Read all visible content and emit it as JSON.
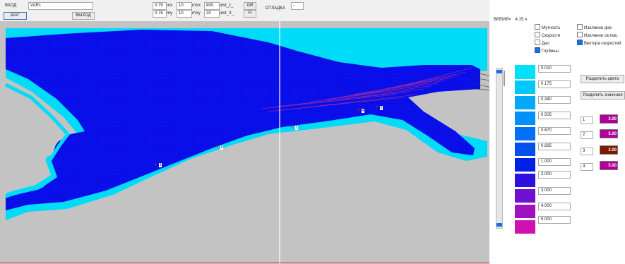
{
  "toolbar": {
    "input_label": "ВХОД",
    "file_name": "VAR1",
    "step_label": "ШАГ",
    "exit_label": "ВЫХОД",
    "mx_value": "0.75",
    "mx_label": "mx",
    "mvx_value": "10",
    "mvx_label": "mVx",
    "val_800": "800",
    "otst_z_label": "otst_z_",
    "gr_label": "GR",
    "debug_label": "ОТЛАДКА",
    "debug_value": "-",
    "my_value": "0.75",
    "my_label": "my",
    "mvy_value": "10",
    "mvy_label": "mVy",
    "val_20": "20",
    "otst_x_label": "otst_X_",
    "fi_label": "FI"
  },
  "time": {
    "label": "ВРЕМЯ=",
    "value": "4.15 ч"
  },
  "layers": [
    {
      "label": "Мутность",
      "checked": false
    },
    {
      "label": "Изолинии дна",
      "checked": false
    },
    {
      "label": "Скорости",
      "checked": false
    },
    {
      "label": "Изолинии св.пов.",
      "checked": false
    },
    {
      "label": "Дно",
      "checked": false
    },
    {
      "label": "Вектора скоростей",
      "checked": true
    },
    {
      "label": "Глубины",
      "checked": true
    }
  ],
  "legend": {
    "colors": [
      "#00e0f8",
      "#00c8f8",
      "#00aaf8",
      "#0090f8",
      "#0070f8",
      "#0050f0",
      "#0020e8",
      "#3010e0",
      "#7010d0",
      "#a010c0",
      "#d010b0",
      "#f00090"
    ],
    "values": [
      "0.010",
      "0.175",
      "0.340",
      "0.505",
      "0.670",
      "0.835",
      "1.000",
      "2.000",
      "3.000",
      "4.000",
      "5.000"
    ]
  },
  "buttons": {
    "split_colors": "Разделить цвета",
    "split_values": "Разделить значения"
  },
  "color_slots": [
    {
      "n": "1",
      "value": "3.00",
      "color": "#b0009a"
    },
    {
      "n": "2",
      "value": "5.00",
      "color": "#b0009a"
    },
    {
      "n": "3",
      "value": "3.00",
      "color": "#7a1a00"
    },
    {
      "n": "4",
      "value": "5.00",
      "color": "#b0009a"
    }
  ],
  "markers": [
    "3",
    "6",
    "2",
    "4",
    "2"
  ]
}
